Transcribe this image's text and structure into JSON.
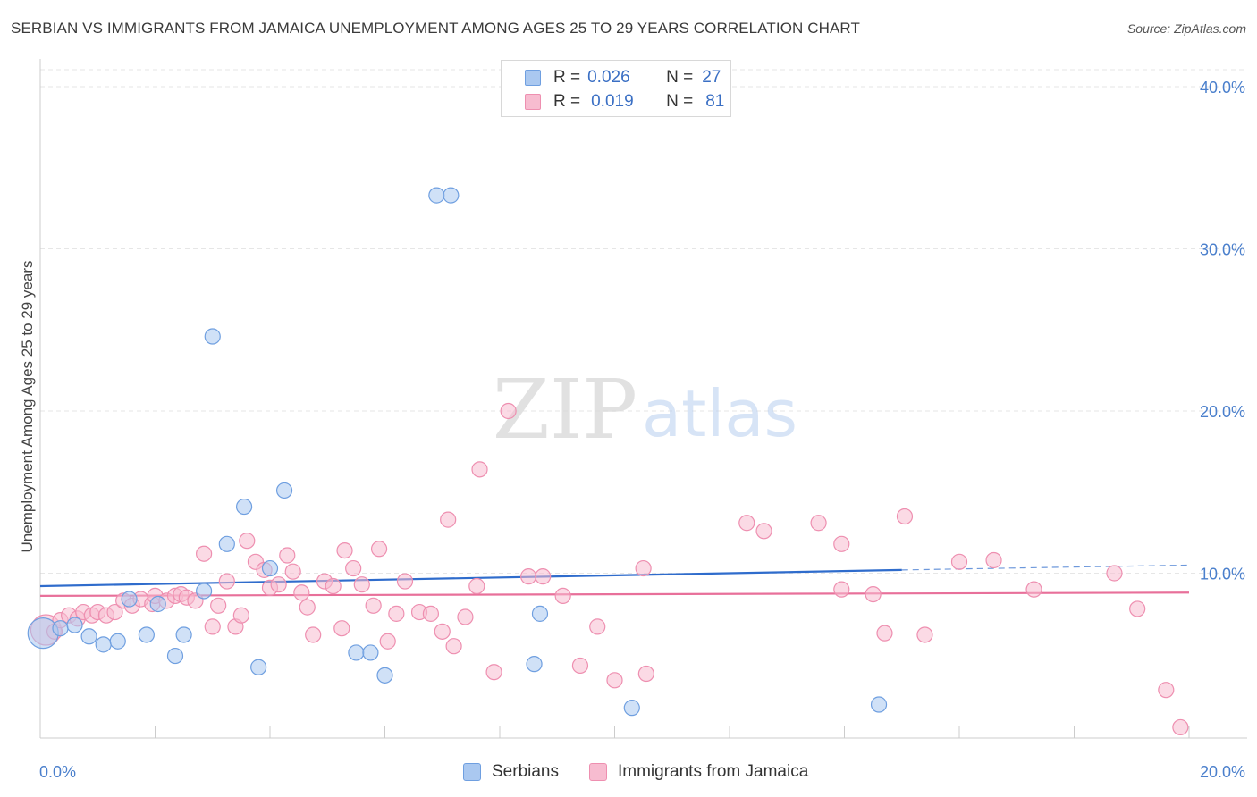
{
  "title": "SERBIAN VS IMMIGRANTS FROM JAMAICA UNEMPLOYMENT AMONG AGES 25 TO 29 YEARS CORRELATION CHART",
  "source": "Source: ZipAtlas.com",
  "watermark": {
    "zip": "ZIP",
    "atlas": "atlas"
  },
  "legend": {
    "rows": [
      {
        "r_label": "R =",
        "r_value": "0.026",
        "n_label": "N =",
        "n_value": "27"
      },
      {
        "r_label": "R =",
        "r_value": "0.019",
        "n_label": "N =",
        "n_value": "81"
      }
    ]
  },
  "bottom_legend": {
    "serbians": "Serbians",
    "jamaica": "Immigrants from Jamaica"
  },
  "colors": {
    "serbians_fill": "#aac8f0",
    "serbians_stroke": "#6f9fe0",
    "serbians_line": "#2f6ccc",
    "jamaica_fill": "#f7bcd0",
    "jamaica_stroke": "#ee8fb0",
    "jamaica_line": "#e8709a",
    "tick_text": "#4a7fcc",
    "grid": "#e6e6e6"
  },
  "chart_data": {
    "type": "scatter",
    "title": "SERBIAN VS IMMIGRANTS FROM JAMAICA UNEMPLOYMENT AMONG AGES 25 TO 29 YEARS CORRELATION CHART",
    "xlabel": "",
    "ylabel": "Unemployment Among Ages 25 to 29 years",
    "xlim": [
      0,
      20
    ],
    "ylim": [
      0,
      40
    ],
    "x_tick_labels": [
      "0.0%",
      "20.0%"
    ],
    "y_ticks": [
      10,
      20,
      30,
      40
    ],
    "y_tick_labels": [
      "10.0%",
      "20.0%",
      "30.0%",
      "40.0%"
    ],
    "grid": true,
    "legend_position": "top-center",
    "series": [
      {
        "name": "Serbians",
        "R": 0.026,
        "N": 27,
        "trend": {
          "x": [
            0,
            15
          ],
          "y": [
            9.2,
            10.2
          ],
          "dashed_extension": {
            "x": [
              15,
              20
            ],
            "y": [
              10.2,
              10.5
            ]
          }
        },
        "points": [
          {
            "x": 0.05,
            "y": 6.3,
            "big": true
          },
          {
            "x": 0.35,
            "y": 6.6
          },
          {
            "x": 0.6,
            "y": 6.8
          },
          {
            "x": 0.85,
            "y": 6.1
          },
          {
            "x": 1.1,
            "y": 5.6
          },
          {
            "x": 1.35,
            "y": 5.8
          },
          {
            "x": 1.55,
            "y": 8.4
          },
          {
            "x": 1.85,
            "y": 6.2
          },
          {
            "x": 2.05,
            "y": 8.1
          },
          {
            "x": 2.35,
            "y": 4.9
          },
          {
            "x": 2.5,
            "y": 6.2
          },
          {
            "x": 2.85,
            "y": 8.9
          },
          {
            "x": 3.0,
            "y": 24.6
          },
          {
            "x": 3.25,
            "y": 11.8
          },
          {
            "x": 3.55,
            "y": 14.1
          },
          {
            "x": 3.8,
            "y": 4.2
          },
          {
            "x": 4.0,
            "y": 10.3
          },
          {
            "x": 4.25,
            "y": 15.1
          },
          {
            "x": 5.5,
            "y": 5.1
          },
          {
            "x": 5.75,
            "y": 5.1
          },
          {
            "x": 6.0,
            "y": 3.7
          },
          {
            "x": 6.9,
            "y": 33.3
          },
          {
            "x": 7.15,
            "y": 33.3
          },
          {
            "x": 8.6,
            "y": 4.4
          },
          {
            "x": 8.7,
            "y": 7.5
          },
          {
            "x": 10.3,
            "y": 1.7
          },
          {
            "x": 14.6,
            "y": 1.9
          }
        ]
      },
      {
        "name": "Immigrants from Jamaica",
        "R": 0.019,
        "N": 81,
        "trend": {
          "x": [
            0,
            20
          ],
          "y": [
            8.6,
            8.8
          ]
        },
        "points": [
          {
            "x": 0.1,
            "y": 6.5,
            "big": true
          },
          {
            "x": 0.25,
            "y": 6.4
          },
          {
            "x": 0.35,
            "y": 7.1
          },
          {
            "x": 0.5,
            "y": 7.4
          },
          {
            "x": 0.65,
            "y": 7.2
          },
          {
            "x": 0.75,
            "y": 7.6
          },
          {
            "x": 0.9,
            "y": 7.4
          },
          {
            "x": 1.0,
            "y": 7.6
          },
          {
            "x": 1.15,
            "y": 7.4
          },
          {
            "x": 1.3,
            "y": 7.6
          },
          {
            "x": 1.45,
            "y": 8.3
          },
          {
            "x": 1.6,
            "y": 8.0
          },
          {
            "x": 1.75,
            "y": 8.4
          },
          {
            "x": 1.95,
            "y": 8.1
          },
          {
            "x": 2.0,
            "y": 8.6
          },
          {
            "x": 2.2,
            "y": 8.3
          },
          {
            "x": 2.35,
            "y": 8.6
          },
          {
            "x": 2.45,
            "y": 8.7
          },
          {
            "x": 2.55,
            "y": 8.5
          },
          {
            "x": 2.7,
            "y": 8.3
          },
          {
            "x": 2.85,
            "y": 11.2
          },
          {
            "x": 3.0,
            "y": 6.7
          },
          {
            "x": 3.1,
            "y": 8.0
          },
          {
            "x": 3.25,
            "y": 9.5
          },
          {
            "x": 3.4,
            "y": 6.7
          },
          {
            "x": 3.5,
            "y": 7.4
          },
          {
            "x": 3.6,
            "y": 12.0
          },
          {
            "x": 3.75,
            "y": 10.7
          },
          {
            "x": 3.9,
            "y": 10.2
          },
          {
            "x": 4.0,
            "y": 9.1
          },
          {
            "x": 4.15,
            "y": 9.3
          },
          {
            "x": 4.3,
            "y": 11.1
          },
          {
            "x": 4.4,
            "y": 10.1
          },
          {
            "x": 4.55,
            "y": 8.8
          },
          {
            "x": 4.65,
            "y": 7.9
          },
          {
            "x": 4.75,
            "y": 6.2
          },
          {
            "x": 4.95,
            "y": 9.5
          },
          {
            "x": 5.1,
            "y": 9.2
          },
          {
            "x": 5.25,
            "y": 6.6
          },
          {
            "x": 5.3,
            "y": 11.4
          },
          {
            "x": 5.45,
            "y": 10.3
          },
          {
            "x": 5.6,
            "y": 9.3
          },
          {
            "x": 5.8,
            "y": 8.0
          },
          {
            "x": 5.9,
            "y": 11.5
          },
          {
            "x": 6.05,
            "y": 5.8
          },
          {
            "x": 6.2,
            "y": 7.5
          },
          {
            "x": 6.35,
            "y": 9.5
          },
          {
            "x": 6.6,
            "y": 7.6
          },
          {
            "x": 6.8,
            "y": 7.5
          },
          {
            "x": 7.0,
            "y": 6.4
          },
          {
            "x": 7.1,
            "y": 13.3
          },
          {
            "x": 7.2,
            "y": 5.5
          },
          {
            "x": 7.4,
            "y": 7.3
          },
          {
            "x": 7.6,
            "y": 9.2
          },
          {
            "x": 7.65,
            "y": 16.4
          },
          {
            "x": 7.9,
            "y": 3.9
          },
          {
            "x": 8.15,
            "y": 20.0
          },
          {
            "x": 8.5,
            "y": 9.8
          },
          {
            "x": 8.75,
            "y": 9.8
          },
          {
            "x": 9.1,
            "y": 8.6
          },
          {
            "x": 9.4,
            "y": 4.3
          },
          {
            "x": 9.7,
            "y": 6.7
          },
          {
            "x": 10.0,
            "y": 3.4
          },
          {
            "x": 10.5,
            "y": 10.3
          },
          {
            "x": 10.55,
            "y": 3.8
          },
          {
            "x": 12.3,
            "y": 13.1
          },
          {
            "x": 12.6,
            "y": 12.6
          },
          {
            "x": 13.55,
            "y": 13.1
          },
          {
            "x": 13.95,
            "y": 9.0
          },
          {
            "x": 13.95,
            "y": 11.8
          },
          {
            "x": 14.5,
            "y": 8.7
          },
          {
            "x": 14.7,
            "y": 6.3
          },
          {
            "x": 15.05,
            "y": 13.5
          },
          {
            "x": 15.4,
            "y": 6.2
          },
          {
            "x": 16.0,
            "y": 10.7
          },
          {
            "x": 16.6,
            "y": 10.8
          },
          {
            "x": 17.3,
            "y": 9.0
          },
          {
            "x": 18.7,
            "y": 10.0
          },
          {
            "x": 19.1,
            "y": 7.8
          },
          {
            "x": 19.6,
            "y": 2.8
          },
          {
            "x": 19.85,
            "y": 0.5
          }
        ]
      }
    ]
  }
}
